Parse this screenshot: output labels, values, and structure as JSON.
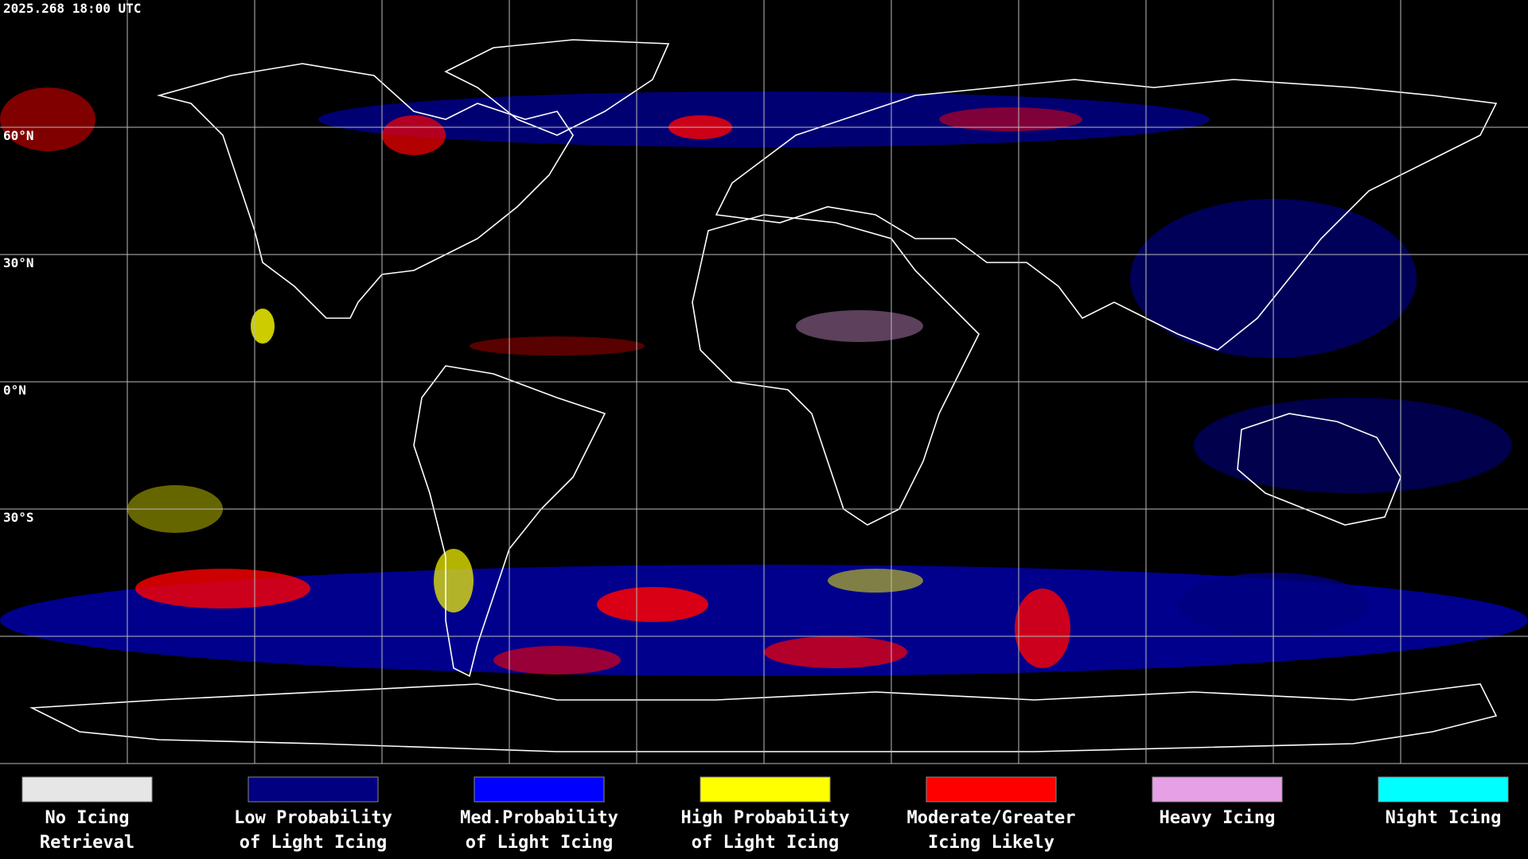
{
  "timestamp": "2025.268 18:00 UTC",
  "latitude_labels": [
    "60°N",
    "30°N",
    "0°N",
    "30°S"
  ],
  "legend": [
    {
      "color": "#e6e6e6",
      "label": [
        "No Icing",
        "Retrieval"
      ]
    },
    {
      "color": "#000080",
      "label": [
        "Low Probability",
        "of Light Icing"
      ]
    },
    {
      "color": "#0000ff",
      "label": [
        "Med.Probability",
        "of Light Icing"
      ]
    },
    {
      "color": "#ffff00",
      "label": [
        "High Probability",
        "of Light Icing"
      ]
    },
    {
      "color": "#ff0000",
      "label": [
        "Moderate/Greater",
        "Icing Likely"
      ]
    },
    {
      "color": "#e6a0e6",
      "label": [
        "Heavy Icing"
      ]
    },
    {
      "color": "#00ffff",
      "label": [
        "Night Icing"
      ]
    }
  ]
}
